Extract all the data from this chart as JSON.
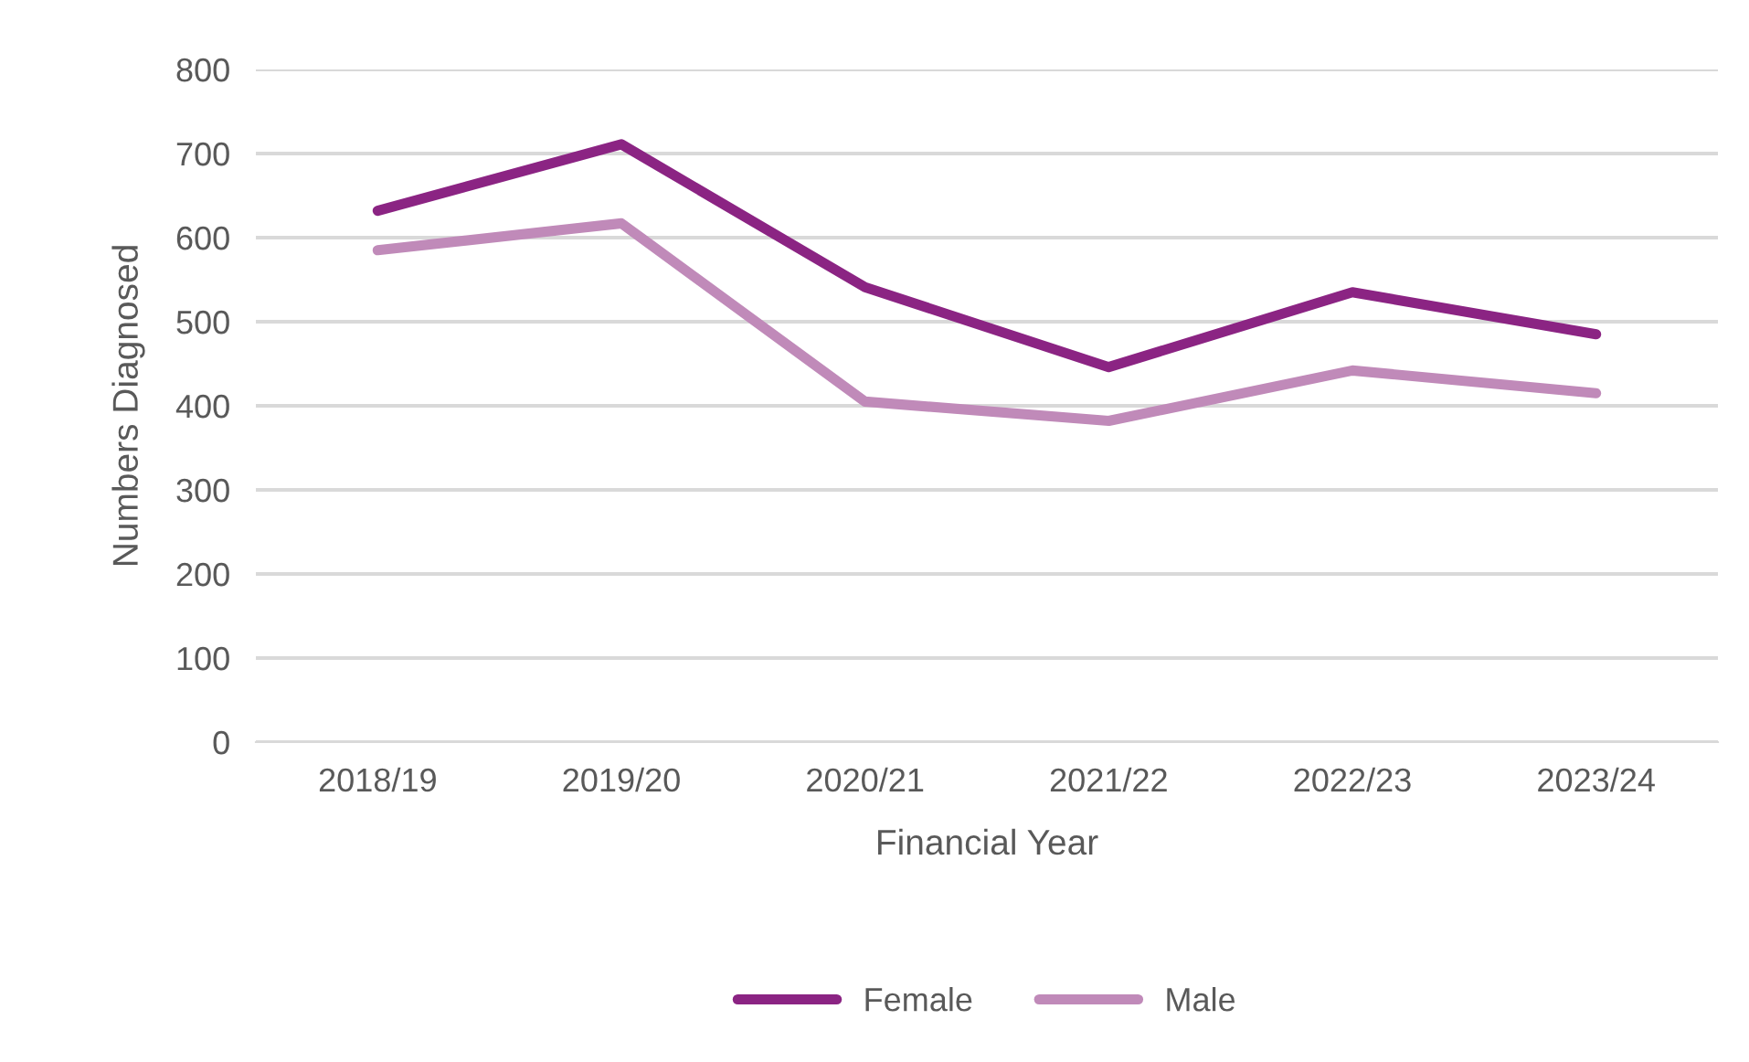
{
  "chart_data": {
    "type": "line",
    "xlabel": "Financial Year",
    "ylabel": "Numbers Diagnosed",
    "categories": [
      "2018/19",
      "2019/20",
      "2020/21",
      "2021/22",
      "2022/23",
      "2023/24"
    ],
    "series": [
      {
        "name": "Female",
        "color": "#8b2483",
        "values": [
          632,
          711,
          541,
          446,
          535,
          485
        ]
      },
      {
        "name": "Male",
        "color": "#c08ab9",
        "values": [
          585,
          617,
          405,
          382,
          442,
          415
        ]
      }
    ],
    "ylim": [
      0,
      800
    ],
    "yticks": [
      0,
      100,
      200,
      300,
      400,
      500,
      600,
      700,
      800
    ],
    "grid": "y",
    "legend": "bottom",
    "marker": "none",
    "line_style": "solid"
  }
}
